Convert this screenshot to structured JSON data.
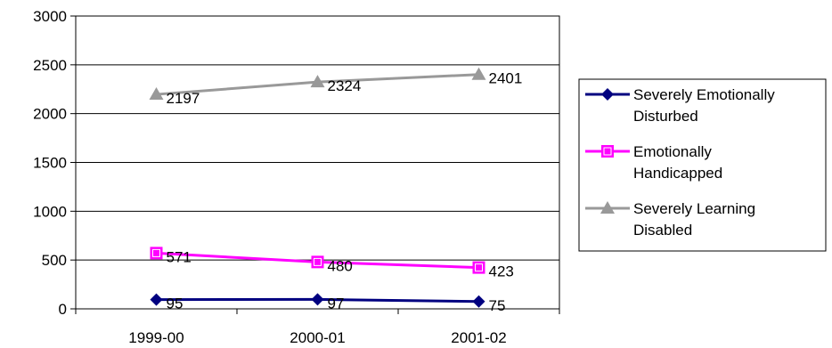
{
  "chart_data": {
    "type": "line",
    "categories": [
      "1999-00",
      "2000-01",
      "2001-02"
    ],
    "ylim": [
      0,
      3000
    ],
    "yticks": [
      "0",
      "500",
      "1000",
      "1500",
      "2000",
      "2500",
      "3000"
    ],
    "grid": true,
    "legend_position": "right",
    "series": [
      {
        "name_lines": [
          "Severely Emotionally",
          "Disturbed"
        ],
        "values": [
          95,
          97,
          75
        ],
        "labels": [
          "95",
          "97",
          "75"
        ],
        "color": "#000080",
        "marker": "diamond"
      },
      {
        "name_lines": [
          "Emotionally",
          "Handicapped"
        ],
        "values": [
          571,
          480,
          423
        ],
        "labels": [
          "571",
          "480",
          "423"
        ],
        "color": "#FF00FF",
        "marker": "square"
      },
      {
        "name_lines": [
          "Severely Learning",
          "Disabled"
        ],
        "values": [
          2197,
          2324,
          2401
        ],
        "labels": [
          "2197",
          "2324",
          "2401"
        ],
        "color": "#999999",
        "marker": "triangle"
      }
    ]
  }
}
